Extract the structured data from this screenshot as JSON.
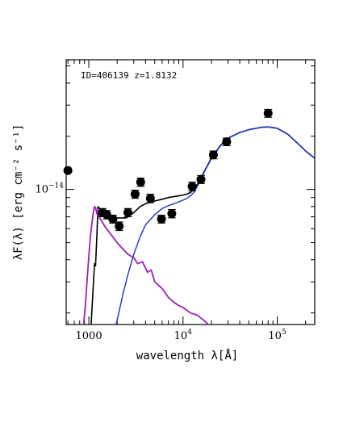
{
  "chart_data": {
    "type": "scatter",
    "annotation": "ID=406139 z=1.8132",
    "xlabel": "wavelength λ[Å]",
    "ylabel": "λF(λ) [erg cm⁻² s⁻¹]",
    "xscale": "log",
    "yscale": "log",
    "xlim": [
      575,
      250000
    ],
    "ylim": [
      1.72e-15,
      5.42e-14
    ],
    "grid": false,
    "legend": "none",
    "x_tick_labels": [
      {
        "value": 1000,
        "base": "1000",
        "exp": ""
      },
      {
        "value": 10000,
        "base": "10",
        "exp": "4"
      },
      {
        "value": 100000,
        "base": "10",
        "exp": "5"
      }
    ],
    "y_tick_labels": [
      {
        "value": 1e-14,
        "base": "10",
        "exp": "−14"
      }
    ],
    "points": [
      {
        "x": 600,
        "y": 1.28e-14,
        "err": 0
      },
      {
        "x": 1400,
        "y": 7.4e-15,
        "err": 4e-16
      },
      {
        "x": 1550,
        "y": 7.2e-15,
        "err": 4e-16
      },
      {
        "x": 1800,
        "y": 6.8e-15,
        "err": 3.5e-16
      },
      {
        "x": 2100,
        "y": 6.2e-15,
        "err": 3.5e-16
      },
      {
        "x": 2600,
        "y": 7.4e-15,
        "err": 4e-16
      },
      {
        "x": 3100,
        "y": 9.4e-15,
        "err": 5e-16
      },
      {
        "x": 3550,
        "y": 1.1e-14,
        "err": 6e-16
      },
      {
        "x": 4500,
        "y": 8.9e-15,
        "err": 5e-16
      },
      {
        "x": 5900,
        "y": 6.8e-15,
        "err": 3.5e-16
      },
      {
        "x": 7600,
        "y": 7.3e-15,
        "err": 4e-16
      },
      {
        "x": 12500,
        "y": 1.04e-14,
        "err": 6e-16
      },
      {
        "x": 15500,
        "y": 1.14e-14,
        "err": 6e-16
      },
      {
        "x": 21000,
        "y": 1.57e-14,
        "err": 8e-16
      },
      {
        "x": 29000,
        "y": 1.86e-14,
        "err": 9e-16
      },
      {
        "x": 80000,
        "y": 2.7e-14,
        "err": 1.4e-15
      }
    ],
    "series": [
      {
        "color": "#000000",
        "x": [
          1050,
          1100,
          1150,
          1180,
          1216,
          1250,
          1300,
          1400,
          1500,
          1700,
          2000,
          2500,
          3000,
          3500,
          4000,
          5000,
          6000,
          7000,
          8000,
          9000,
          10000,
          11000,
          12000,
          13000,
          15000,
          17000,
          20000,
          25000,
          30000,
          40000,
          50000,
          60000,
          70000,
          80000,
          100000,
          130000,
          160000,
          200000,
          250000
        ],
        "y": [
          1.6e-15,
          2.5e-15,
          3.8e-15,
          3.7e-15,
          5.4e-15,
          8e-15,
          7.8e-15,
          7.4e-15,
          7.3e-15,
          7.1e-15,
          6.9e-15,
          6.9e-15,
          7.4e-15,
          8e-15,
          8.3e-15,
          8.6e-15,
          8.8e-15,
          9e-15,
          9.1e-15,
          9.2e-15,
          9.3e-15,
          9.4e-15,
          9.6e-15,
          1e-14,
          1.12e-14,
          1.28e-14,
          1.5e-14,
          1.78e-14,
          1.95e-14,
          2.1e-14,
          2.18e-14,
          2.22e-14,
          2.25e-14,
          2.26e-14,
          2.22e-14,
          2.05e-14,
          1.85e-14,
          1.65e-14,
          1.5e-14
        ]
      },
      {
        "color": "#1a33cc",
        "x": [
          1950,
          2100,
          2300,
          2600,
          3000,
          3500,
          4000,
          5000,
          6000,
          7000,
          8000,
          9000,
          10000,
          11000,
          12000,
          13000,
          15000,
          17000,
          20000,
          25000,
          30000,
          40000,
          50000,
          60000,
          70000,
          80000,
          100000,
          130000,
          160000,
          200000,
          250000
        ],
        "y": [
          1.72e-15,
          2.05e-15,
          2.55e-15,
          3.3e-15,
          4.3e-15,
          5.4e-15,
          6.3e-15,
          7.2e-15,
          7.8e-15,
          8.1e-15,
          8.3e-15,
          8.5e-15,
          8.7e-15,
          8.9e-15,
          9.2e-15,
          9.6e-15,
          1.1e-14,
          1.27e-14,
          1.49e-14,
          1.77e-14,
          1.95e-14,
          2.1e-14,
          2.18e-14,
          2.22e-14,
          2.25e-14,
          2.26e-14,
          2.22e-14,
          2.05e-14,
          1.85e-14,
          1.65e-14,
          1.5e-14
        ]
      },
      {
        "color": "#9b1fb8",
        "x": [
          880,
          920,
          960,
          1000,
          1040,
          1080,
          1120,
          1150,
          1180,
          1216,
          1250,
          1300,
          1400,
          1500,
          1700,
          2000,
          2300,
          2600,
          3000,
          3300,
          3700,
          4200,
          4600,
          5000,
          6000,
          7000,
          8000,
          9000,
          10000,
          12000,
          14000,
          17000,
          18500
        ],
        "y": [
          1.72e-15,
          2.2e-15,
          3.1e-15,
          4.2e-15,
          5.4e-15,
          6.5e-15,
          7.5e-15,
          8e-15,
          7.9e-15,
          7.3e-15,
          7.7e-15,
          6.9e-15,
          6.5e-15,
          6.1e-15,
          5.6e-15,
          5e-15,
          4.6e-15,
          4.3e-15,
          4.1e-15,
          3.8e-15,
          3.9e-15,
          3.4e-15,
          3.5e-15,
          3e-15,
          2.75e-15,
          2.45e-15,
          2.3e-15,
          2.2e-15,
          2.15e-15,
          2e-15,
          1.95e-15,
          1.8e-15,
          1.72e-15
        ]
      }
    ]
  }
}
